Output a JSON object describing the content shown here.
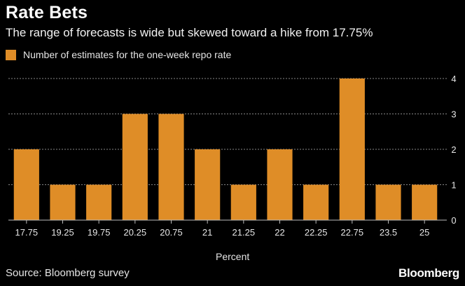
{
  "title": "Rate Bets",
  "subtitle": "The range of forecasts is wide but skewed toward a hike from 17.75%",
  "legend": "Number of estimates for the one-week repo rate",
  "source": "Source: Bloomberg survey",
  "brand": "Bloomberg",
  "colors": {
    "bar": "#df8d27",
    "grid": "#888888",
    "background": "#000000",
    "text": "#e6e6e6"
  },
  "chart_data": {
    "type": "bar",
    "categories": [
      "17.75",
      "19.25",
      "19.75",
      "20.25",
      "20.75",
      "21",
      "21.25",
      "22",
      "22.25",
      "22.75",
      "23.5",
      "25"
    ],
    "series": [
      {
        "name": "Number of estimates for the one-week repo rate",
        "values": [
          2,
          1,
          1,
          3,
          3,
          2,
          1,
          2,
          1,
          4,
          1,
          1
        ]
      }
    ],
    "yticks": [
      0,
      1,
      2,
      3,
      4
    ],
    "ylim": [
      0,
      4
    ],
    "xlabel": "Percent",
    "ylabel": "",
    "grid": true,
    "yaxis_side": "right",
    "legend_position": "top-left"
  }
}
